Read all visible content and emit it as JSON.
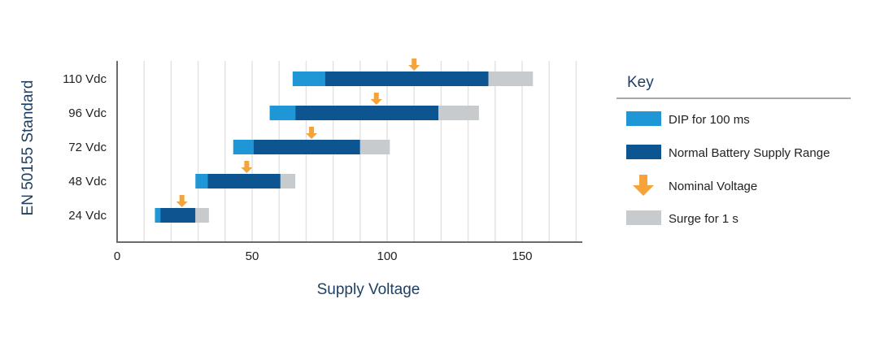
{
  "chart_data": {
    "type": "bar",
    "subtype": "floating-stacked-horizontal",
    "title": "",
    "xlabel": "Supply Voltage",
    "ylabel": "EN 50155 Standard",
    "xlim": [
      0,
      172
    ],
    "xticks": [
      0,
      50,
      100,
      150
    ],
    "grid": "vertical every 10",
    "categories": [
      "110 Vdc",
      "96 Vdc",
      "72 Vdc",
      "48 Vdc",
      "24 Vdc"
    ],
    "nominal": [
      110,
      96,
      72,
      48,
      24
    ],
    "series": [
      {
        "name": "DIP for 100 ms",
        "color": "#1f96d6",
        "ranges": [
          [
            65,
            77
          ],
          [
            56.5,
            66
          ],
          [
            43,
            50.5
          ],
          [
            29,
            33.5
          ],
          [
            14,
            16
          ]
        ]
      },
      {
        "name": "Normal Battery Supply Range",
        "color": "#0d5590",
        "ranges": [
          [
            77,
            137.5
          ],
          [
            66,
            119
          ],
          [
            50.5,
            90
          ],
          [
            33.5,
            60.5
          ],
          [
            16,
            29
          ]
        ]
      },
      {
        "name": "Surge for 1 s",
        "color": "#c8cbcd",
        "ranges": [
          [
            137.5,
            154
          ],
          [
            119,
            134
          ],
          [
            90,
            101
          ],
          [
            60.5,
            66
          ],
          [
            29,
            34
          ]
        ]
      }
    ],
    "legend": {
      "title": "Key",
      "placement": "right",
      "items": [
        {
          "label": "DIP for 100 ms",
          "color": "#1f96d6",
          "icon": "swatch-icon"
        },
        {
          "label": "Normal Battery Supply Range",
          "color": "#0d5590",
          "icon": "swatch-icon"
        },
        {
          "label": "Nominal Voltage",
          "color": "#f5a33a",
          "icon": "down-arrow-icon"
        },
        {
          "label": "Surge for 1 s",
          "color": "#c8cbcd",
          "icon": "swatch-icon"
        }
      ]
    },
    "colors": {
      "axis": "#6b6b6b",
      "grid": "#e2e2e2",
      "label": "#1e3f63",
      "text": "#222222",
      "arrow": "#f5a33a",
      "legend_rule": "#8a8a8a"
    }
  }
}
